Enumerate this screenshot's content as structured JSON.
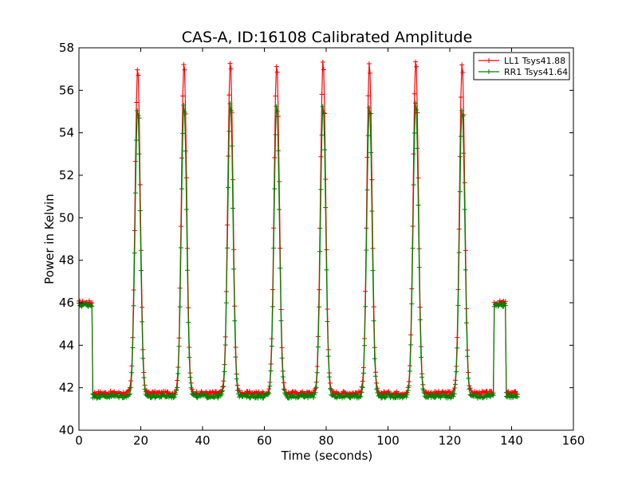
{
  "chart_data": {
    "type": "line",
    "title": "CAS-A, ID:16108 Calibrated Amplitude",
    "xlabel": "Time (seconds)",
    "ylabel": "Power in Kelvin",
    "xlim": [
      0,
      160
    ],
    "ylim": [
      40,
      58
    ],
    "xticks": [
      "0",
      "20",
      "40",
      "60",
      "80",
      "100",
      "120",
      "140",
      "160"
    ],
    "yticks": [
      "40",
      "42",
      "44",
      "46",
      "48",
      "50",
      "52",
      "54",
      "56",
      "58"
    ],
    "grid": false,
    "legend_position": "top-right",
    "marker": "+",
    "series": [
      {
        "name": "LL1 Tsys41.88",
        "color": "#ff0000",
        "baseline": 41.75,
        "on_source_level": 46.0,
        "peak_times": [
          19,
          34,
          49,
          64,
          79,
          94,
          109,
          124
        ],
        "peak_values": [
          57.1,
          57.4,
          57.4,
          57.3,
          57.4,
          57.3,
          57.5,
          57.3
        ]
      },
      {
        "name": "RR1 Tsys41.64",
        "color": "#008000",
        "baseline": 41.6,
        "on_source_level": 45.9,
        "peak_times": [
          19,
          34,
          49,
          64,
          79,
          94,
          109,
          124
        ],
        "peak_values": [
          55.1,
          55.4,
          55.5,
          55.4,
          55.3,
          55.3,
          55.5,
          55.2
        ]
      }
    ],
    "time_range": [
      0,
      142
    ],
    "on_source_segments": [
      [
        0,
        4.2
      ],
      [
        134.2,
        138
      ]
    ]
  }
}
